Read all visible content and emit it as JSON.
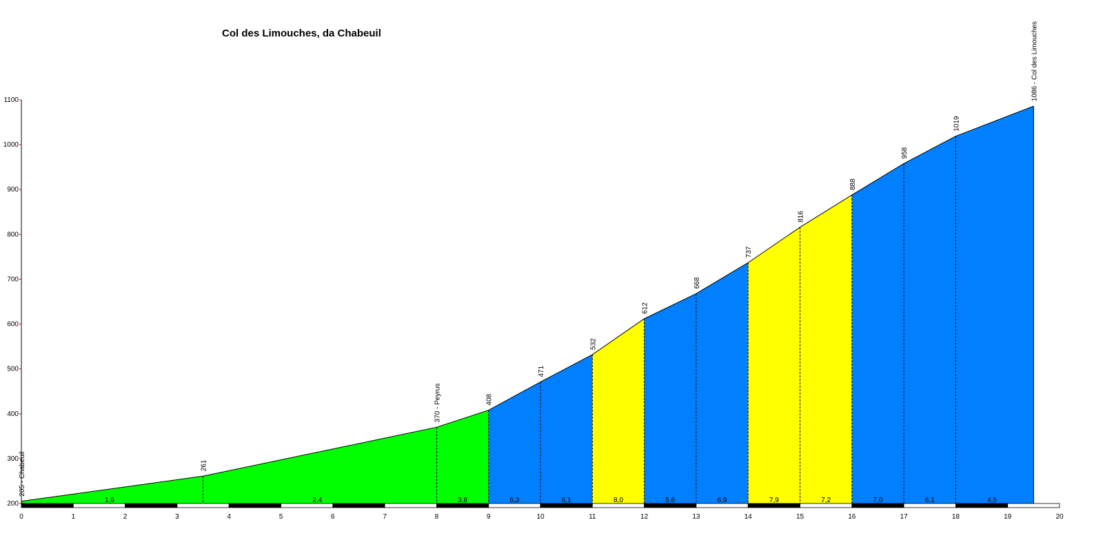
{
  "chart_data": {
    "type": "area",
    "title": "Col des Limouches, da Chabeuil",
    "xlabel": "",
    "ylabel": "",
    "xlim": [
      0,
      20
    ],
    "ylim": [
      200,
      1100
    ],
    "xticks": [
      "0",
      "1",
      "2",
      "3",
      "4",
      "5",
      "6",
      "7",
      "8",
      "9",
      "10",
      "11",
      "12",
      "13",
      "14",
      "15",
      "16",
      "17",
      "18",
      "19",
      "20"
    ],
    "yticks": [
      "200",
      "300",
      "400",
      "500",
      "600",
      "700",
      "800",
      "900",
      "1000",
      "1100"
    ],
    "points": [
      {
        "x": 0,
        "y": 205
      },
      {
        "x": 3.5,
        "y": 261
      },
      {
        "x": 8,
        "y": 370
      },
      {
        "x": 9,
        "y": 408
      },
      {
        "x": 10,
        "y": 471
      },
      {
        "x": 11,
        "y": 532
      },
      {
        "x": 12,
        "y": 612
      },
      {
        "x": 13,
        "y": 668
      },
      {
        "x": 14,
        "y": 737
      },
      {
        "x": 15,
        "y": 816
      },
      {
        "x": 16,
        "y": 888
      },
      {
        "x": 17,
        "y": 958
      },
      {
        "x": 18,
        "y": 1019
      },
      {
        "x": 19.5,
        "y": 1086
      }
    ],
    "point_labels": [
      {
        "x": 0,
        "y": 205,
        "label": "205 - Chabeuil"
      },
      {
        "x": 3.5,
        "y": 261,
        "label": "261"
      },
      {
        "x": 8,
        "y": 370,
        "label": "370 - Peyrus"
      },
      {
        "x": 9,
        "y": 408,
        "label": "408"
      },
      {
        "x": 10,
        "y": 471,
        "label": "471"
      },
      {
        "x": 11,
        "y": 532,
        "label": "532"
      },
      {
        "x": 12,
        "y": 612,
        "label": "612"
      },
      {
        "x": 13,
        "y": 668,
        "label": "668"
      },
      {
        "x": 14,
        "y": 737,
        "label": "737"
      },
      {
        "x": 15,
        "y": 816,
        "label": "816"
      },
      {
        "x": 16,
        "y": 888,
        "label": "888"
      },
      {
        "x": 17,
        "y": 958,
        "label": "958"
      },
      {
        "x": 18,
        "y": 1019,
        "label": "1019"
      },
      {
        "x": 19.5,
        "y": 1086,
        "label": "1086 - Col des Limouches"
      }
    ],
    "segments": [
      {
        "from": 0,
        "to": 3.5,
        "gradient": "1,6",
        "label_x": 1.7,
        "color": "#00ff00"
      },
      {
        "from": 3.5,
        "to": 8,
        "gradient": "2,4",
        "label_x": 5.7,
        "color": "#00ff00"
      },
      {
        "from": 8,
        "to": 9,
        "gradient": "3,8",
        "label_x": 8.5,
        "color": "#00ff00"
      },
      {
        "from": 9,
        "to": 10,
        "gradient": "6,3",
        "label_x": 9.5,
        "color": "#0080ff"
      },
      {
        "from": 10,
        "to": 11,
        "gradient": "6,1",
        "label_x": 10.5,
        "color": "#0080ff"
      },
      {
        "from": 11,
        "to": 12,
        "gradient": "8,0",
        "label_x": 11.5,
        "color": "#ffff00"
      },
      {
        "from": 12,
        "to": 13,
        "gradient": "5,6",
        "label_x": 12.5,
        "color": "#0080ff"
      },
      {
        "from": 13,
        "to": 14,
        "gradient": "6,9",
        "label_x": 13.5,
        "color": "#0080ff"
      },
      {
        "from": 14,
        "to": 15,
        "gradient": "7,9",
        "label_x": 14.5,
        "color": "#ffff00"
      },
      {
        "from": 15,
        "to": 16,
        "gradient": "7,2",
        "label_x": 15.5,
        "color": "#ffff00"
      },
      {
        "from": 16,
        "to": 17,
        "gradient": "7,0",
        "label_x": 16.5,
        "color": "#0080ff"
      },
      {
        "from": 17,
        "to": 18,
        "gradient": "6,1",
        "label_x": 17.5,
        "color": "#0080ff"
      },
      {
        "from": 18,
        "to": 19.5,
        "gradient": "4,5",
        "label_x": 18.7,
        "color": "#0080ff"
      }
    ],
    "grid": false,
    "colors": {
      "green": "#00ff00",
      "blue": "#0080ff",
      "yellow": "#ffff00",
      "axis_tick": "#cc0000"
    }
  }
}
